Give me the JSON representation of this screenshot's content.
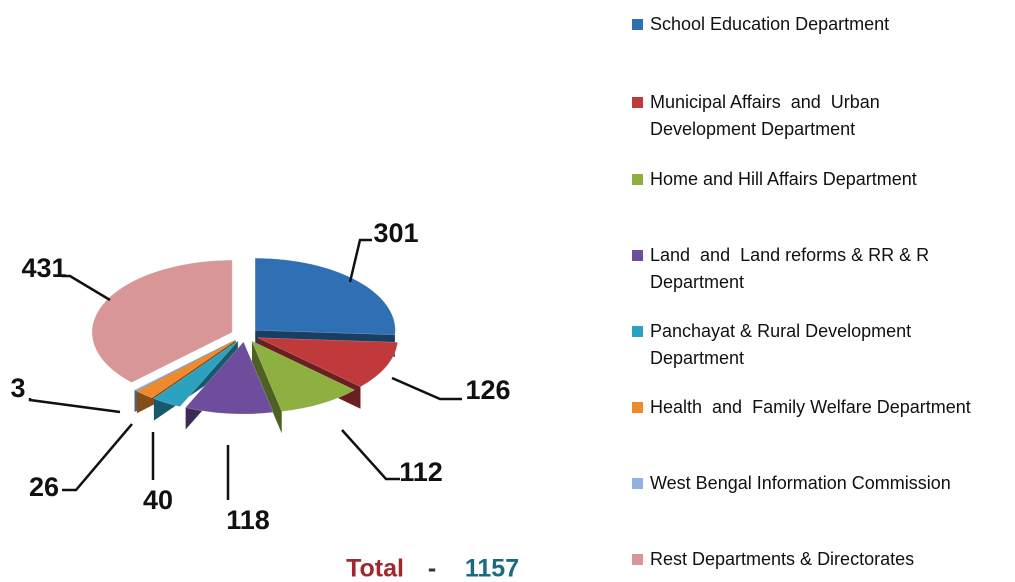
{
  "chart_data": {
    "type": "pie",
    "categories": [
      "School Education Department",
      "Municipal Affairs  and  Urban Development Department",
      "Home and Hill Affairs Department",
      "Land  and  Land reforms & RR & R Department",
      "Panchayat & Rural Development Department",
      "Health  and  Family Welfare Department",
      "West Bengal Information Commission",
      "Rest Departments & Directorates"
    ],
    "values": [
      301,
      126,
      112,
      118,
      40,
      26,
      3,
      431
    ],
    "colors": [
      "#2f6fb3",
      "#c0393b",
      "#8db040",
      "#6e4e9c",
      "#2aa2c0",
      "#ef8a2c",
      "#90b2de",
      "#d99696"
    ],
    "total_label": "Total",
    "total_separator": "-",
    "total": 1157,
    "legend": "right"
  }
}
